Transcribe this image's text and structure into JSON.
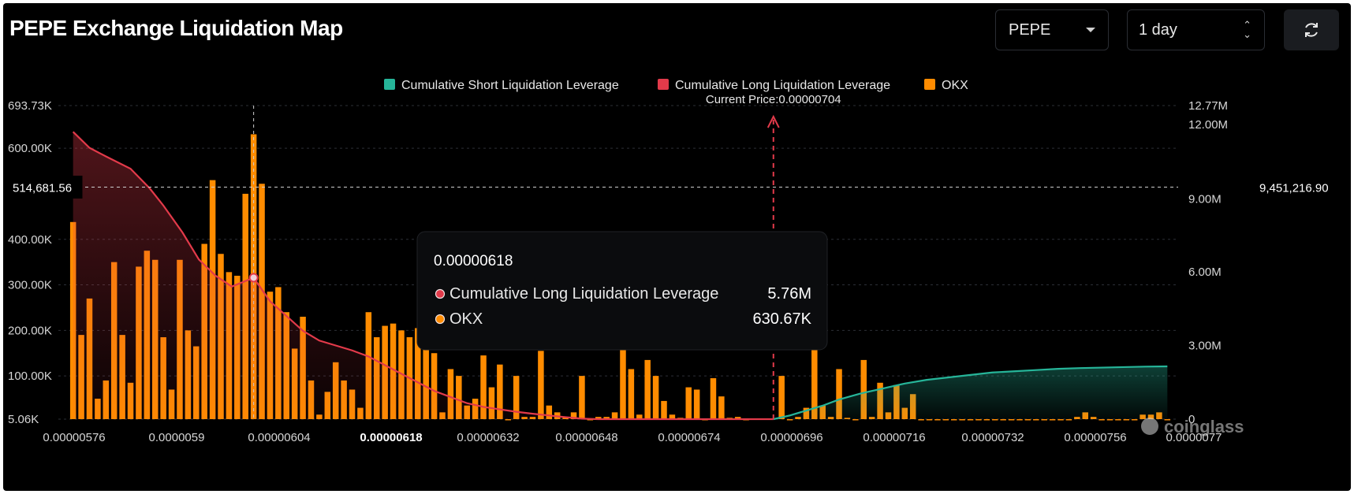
{
  "header": {
    "title": "PEPE Exchange Liquidation Map",
    "coin_select": "PEPE",
    "range_select": "1 day"
  },
  "icons": {
    "refresh": "refresh-icon",
    "coin_dropdown": "caret-down-icon",
    "range_dropdown": "updown-chevron-icon"
  },
  "colors": {
    "short": "#26b599",
    "long": "#e23a4a",
    "okx": "#ff8c00",
    "background": "#000000"
  },
  "chart_data": {
    "type": "bar",
    "legend": [
      {
        "name": "Cumulative Short Liquidation Leverage",
        "color": "#26b599"
      },
      {
        "name": "Cumulative Long Liquidation Leverage",
        "color": "#e23a4a"
      },
      {
        "name": "OKX",
        "color": "#ff8c00"
      }
    ],
    "x_tick_labels": [
      "0.00000576",
      "0.0000059",
      "0.00000604",
      "0.00000618",
      "0.00000632",
      "0.00000648",
      "0.00000674",
      "0.00000696",
      "0.00000716",
      "0.00000732",
      "0.00000756",
      "0.0000077"
    ],
    "y_left_ticks": [
      "693.73K",
      "600.00K",
      "400.00K",
      "300.00K",
      "200.00K",
      "100.00K",
      "5.06K"
    ],
    "y_right_ticks": [
      "12.77M",
      "12.00M",
      "6.00M",
      "3.00M",
      "0"
    ],
    "ylim_left": [
      5060,
      693730
    ],
    "ylim_right": [
      0,
      12770000
    ],
    "crosshair": {
      "x_label": "0.00000618",
      "left_value": "514,681.56",
      "right_value": "9,451,216.90",
      "y_left": 514681.56
    },
    "current_price": {
      "label": "Current Price:0.00000704",
      "price": 7.04e-06
    },
    "tooltip": {
      "price": "0.00000618",
      "rows": [
        {
          "name": "Cumulative Long Liquidation Leverage",
          "value": "5.76M",
          "color": "#e23a4a"
        },
        {
          "name": "OKX",
          "value": "630.67K",
          "color": "#ff8c00"
        }
      ]
    },
    "watermark": "coinglass",
    "bars_okx": [
      [
        5.76e-06,
        438000
      ],
      [
        5.775e-06,
        190000
      ],
      [
        5.79e-06,
        270000
      ],
      [
        5.805e-06,
        50000
      ],
      [
        5.82e-06,
        90000
      ],
      [
        5.835e-06,
        350000
      ],
      [
        5.85e-06,
        190000
      ],
      [
        5.865e-06,
        85000
      ],
      [
        5.88e-06,
        340000
      ],
      [
        5.895e-06,
        375000
      ],
      [
        5.91e-06,
        355000
      ],
      [
        5.925e-06,
        185000
      ],
      [
        5.94e-06,
        70000
      ],
      [
        5.955e-06,
        355000
      ],
      [
        5.97e-06,
        200000
      ],
      [
        5.985e-06,
        165000
      ],
      [
        6e-06,
        390000
      ],
      [
        6.015e-06,
        530000
      ],
      [
        6.03e-06,
        368000
      ],
      [
        6.045e-06,
        328000
      ],
      [
        6.06e-06,
        320000
      ],
      [
        6.075e-06,
        500000
      ],
      [
        6.09e-06,
        630670
      ],
      [
        6.105e-06,
        522000
      ],
      [
        6.12e-06,
        285000
      ],
      [
        6.135e-06,
        295000
      ],
      [
        6.15e-06,
        240000
      ],
      [
        6.165e-06,
        160000
      ],
      [
        6.18e-06,
        230000
      ],
      [
        6.195e-06,
        90000
      ],
      [
        6.21e-06,
        15000
      ],
      [
        6.225e-06,
        65000
      ],
      [
        6.24e-06,
        130000
      ],
      [
        6.255e-06,
        90000
      ],
      [
        6.27e-06,
        70000
      ],
      [
        6.285e-06,
        30000
      ],
      [
        6.3e-06,
        240000
      ],
      [
        6.315e-06,
        185000
      ],
      [
        6.33e-06,
        210000
      ],
      [
        6.345e-06,
        215000
      ],
      [
        6.36e-06,
        200000
      ],
      [
        6.375e-06,
        185000
      ],
      [
        6.39e-06,
        205000
      ],
      [
        6.405e-06,
        230000
      ],
      [
        6.42e-06,
        150000
      ],
      [
        6.435e-06,
        20000
      ],
      [
        6.45e-06,
        115000
      ],
      [
        6.465e-06,
        100000
      ],
      [
        6.48e-06,
        35000
      ],
      [
        6.495e-06,
        50000
      ],
      [
        6.51e-06,
        145000
      ],
      [
        6.525e-06,
        75000
      ],
      [
        6.54e-06,
        125000
      ],
      [
        6.555e-06,
        5000
      ],
      [
        6.57e-06,
        100000
      ],
      [
        6.585e-06,
        10000
      ],
      [
        6.6e-06,
        10000
      ],
      [
        6.615e-06,
        155000
      ],
      [
        6.63e-06,
        35000
      ],
      [
        6.645e-06,
        20000
      ],
      [
        6.66e-06,
        10000
      ],
      [
        6.675e-06,
        20000
      ],
      [
        6.69e-06,
        100000
      ],
      [
        6.705e-06,
        5000
      ],
      [
        6.72e-06,
        10000
      ],
      [
        6.735e-06,
        10000
      ],
      [
        6.75e-06,
        20000
      ],
      [
        6.765e-06,
        160000
      ],
      [
        6.78e-06,
        115000
      ],
      [
        6.795e-06,
        15000
      ],
      [
        6.81e-06,
        135000
      ],
      [
        6.825e-06,
        100000
      ],
      [
        6.84e-06,
        45000
      ],
      [
        6.855e-06,
        15000
      ],
      [
        6.87e-06,
        8000
      ],
      [
        6.885e-06,
        75000
      ],
      [
        6.9e-06,
        70000
      ],
      [
        6.915e-06,
        5000
      ],
      [
        6.93e-06,
        95000
      ],
      [
        6.945e-06,
        55000
      ],
      [
        6.96e-06,
        8000
      ],
      [
        6.975e-06,
        10000
      ],
      [
        6.99e-06,
        5000
      ]
    ],
    "series_long_cumulative": [
      [
        5.76e-06,
        11.7
      ],
      [
        5.79e-06,
        11.05
      ],
      [
        5.82e-06,
        10.7
      ],
      [
        5.865e-06,
        10.2
      ],
      [
        5.9e-06,
        9.4
      ],
      [
        5.925e-06,
        8.7
      ],
      [
        5.96e-06,
        7.6
      ],
      [
        5.99e-06,
        6.5
      ],
      [
        6.02e-06,
        5.85
      ],
      [
        6.05e-06,
        5.4
      ],
      [
        6.09e-06,
        5.76
      ],
      [
        6.12e-06,
        4.8
      ],
      [
        6.15e-06,
        4.2
      ],
      [
        6.18e-06,
        3.6
      ],
      [
        6.21e-06,
        3.2
      ],
      [
        6.24e-06,
        3.0
      ],
      [
        6.27e-06,
        2.8
      ],
      [
        6.3e-06,
        2.55
      ],
      [
        6.33e-06,
        2.2
      ],
      [
        6.36e-06,
        1.85
      ],
      [
        6.39e-06,
        1.5
      ],
      [
        6.42e-06,
        1.15
      ],
      [
        6.45e-06,
        0.9
      ],
      [
        6.48e-06,
        0.65
      ],
      [
        6.51e-06,
        0.5
      ],
      [
        6.54e-06,
        0.4
      ],
      [
        6.57e-06,
        0.3
      ],
      [
        6.6e-06,
        0.22
      ],
      [
        6.63e-06,
        0.15
      ],
      [
        6.66e-06,
        0.08
      ],
      [
        6.69e-06,
        0.02
      ],
      [
        6.72e-06,
        0.0
      ]
    ],
    "series_short_cumulative": [
      [
        7.04e-06,
        0.0
      ],
      [
        7.07e-06,
        0.15
      ],
      [
        7.1e-06,
        0.35
      ],
      [
        7.13e-06,
        0.55
      ],
      [
        7.16e-06,
        0.8
      ],
      [
        7.2e-06,
        1.05
      ],
      [
        7.24e-06,
        1.25
      ],
      [
        7.28e-06,
        1.45
      ],
      [
        7.32e-06,
        1.6
      ],
      [
        7.36e-06,
        1.7
      ],
      [
        7.4e-06,
        1.8
      ],
      [
        7.44e-06,
        1.9
      ],
      [
        7.48e-06,
        1.95
      ],
      [
        7.52e-06,
        2.0
      ],
      [
        7.56e-06,
        2.05
      ],
      [
        7.6e-06,
        2.08
      ],
      [
        7.64e-06,
        2.1
      ],
      [
        7.68e-06,
        2.12
      ],
      [
        7.72e-06,
        2.14
      ],
      [
        7.76e-06,
        2.15
      ]
    ],
    "bars_short_side": [
      [
        7.055e-06,
        100000
      ],
      [
        7.07e-06,
        5000
      ],
      [
        7.085e-06,
        10000
      ],
      [
        7.1e-06,
        30000
      ],
      [
        7.115e-06,
        160000
      ],
      [
        7.13e-06,
        35000
      ],
      [
        7.145e-06,
        10000
      ],
      [
        7.16e-06,
        115000
      ],
      [
        7.175e-06,
        8000
      ],
      [
        7.19e-06,
        5000
      ],
      [
        7.205e-06,
        135000
      ],
      [
        7.22e-06,
        10000
      ],
      [
        7.235e-06,
        85000
      ],
      [
        7.25e-06,
        20000
      ],
      [
        7.265e-06,
        80000
      ],
      [
        7.28e-06,
        30000
      ],
      [
        7.295e-06,
        60000
      ],
      [
        7.31e-06,
        5000
      ],
      [
        7.325e-06,
        3000
      ],
      [
        7.34e-06,
        5000
      ],
      [
        7.355e-06,
        3000
      ],
      [
        7.37e-06,
        5000
      ],
      [
        7.385e-06,
        3000
      ],
      [
        7.4e-06,
        3000
      ],
      [
        7.415e-06,
        3000
      ],
      [
        7.43e-06,
        3000
      ],
      [
        7.445e-06,
        3000
      ],
      [
        7.46e-06,
        3000
      ],
      [
        7.475e-06,
        3000
      ],
      [
        7.49e-06,
        3000
      ],
      [
        7.505e-06,
        3000
      ],
      [
        7.52e-06,
        3000
      ],
      [
        7.535e-06,
        3000
      ],
      [
        7.55e-06,
        3000
      ],
      [
        7.565e-06,
        3000
      ],
      [
        7.58e-06,
        3000
      ],
      [
        7.595e-06,
        10000
      ],
      [
        7.61e-06,
        20000
      ],
      [
        7.625e-06,
        10000
      ],
      [
        7.64e-06,
        5000
      ],
      [
        7.655e-06,
        3000
      ],
      [
        7.67e-06,
        3000
      ],
      [
        7.685e-06,
        3000
      ],
      [
        7.7e-06,
        5000
      ],
      [
        7.715e-06,
        15000
      ],
      [
        7.73e-06,
        15000
      ],
      [
        7.745e-06,
        20000
      ],
      [
        7.76e-06,
        5000
      ]
    ]
  }
}
